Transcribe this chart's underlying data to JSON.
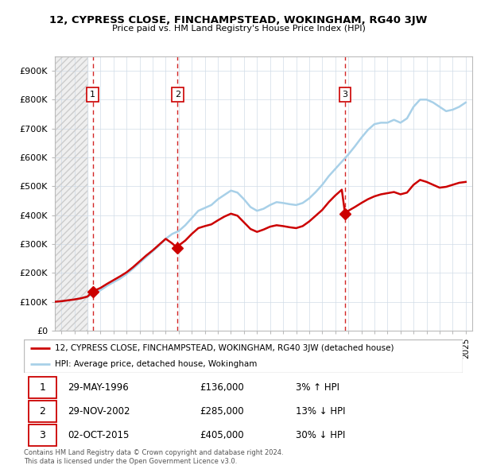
{
  "title": "12, CYPRESS CLOSE, FINCHAMPSTEAD, WOKINGHAM, RG40 3JW",
  "subtitle": "Price paid vs. HM Land Registry's House Price Index (HPI)",
  "ylabel_ticks": [
    "£0",
    "£100K",
    "£200K",
    "£300K",
    "£400K",
    "£500K",
    "£600K",
    "£700K",
    "£800K",
    "£900K"
  ],
  "ytick_values": [
    0,
    100000,
    200000,
    300000,
    400000,
    500000,
    600000,
    700000,
    800000,
    900000
  ],
  "xmin": 1993.5,
  "xmax": 2025.5,
  "ymin": 0,
  "ymax": 950000,
  "sales": [
    {
      "date_num": 1996.41,
      "price": 136000,
      "label": "1"
    },
    {
      "date_num": 2002.91,
      "price": 285000,
      "label": "2"
    },
    {
      "date_num": 2015.75,
      "price": 405000,
      "label": "3"
    }
  ],
  "hpi_color": "#a8d0e8",
  "price_color": "#cc0000",
  "vline_color": "#cc0000",
  "legend_entries": [
    "12, CYPRESS CLOSE, FINCHAMPSTEAD, WOKINGHAM, RG40 3JW (detached house)",
    "HPI: Average price, detached house, Wokingham"
  ],
  "table_rows": [
    {
      "label": "1",
      "date": "29-MAY-1996",
      "price": "£136,000",
      "hpi": "3% ↑ HPI"
    },
    {
      "label": "2",
      "date": "29-NOV-2002",
      "price": "£285,000",
      "hpi": "13% ↓ HPI"
    },
    {
      "label": "3",
      "date": "02-OCT-2015",
      "price": "£405,000",
      "hpi": "30% ↓ HPI"
    }
  ],
  "footnote": "Contains HM Land Registry data © Crown copyright and database right 2024.\nThis data is licensed under the Open Government Licence v3.0.",
  "hpi_x": [
    1993.5,
    1994,
    1994.5,
    1995,
    1995.5,
    1996,
    1996.5,
    1997,
    1997.5,
    1998,
    1998.5,
    1999,
    1999.5,
    2000,
    2000.5,
    2001,
    2001.5,
    2002,
    2002.5,
    2003,
    2003.5,
    2004,
    2004.5,
    2005,
    2005.5,
    2006,
    2006.5,
    2007,
    2007.5,
    2008,
    2008.5,
    2009,
    2009.5,
    2010,
    2010.5,
    2011,
    2011.5,
    2012,
    2012.5,
    2013,
    2013.5,
    2014,
    2014.5,
    2015,
    2015.5,
    2016,
    2016.5,
    2017,
    2017.5,
    2018,
    2018.5,
    2019,
    2019.5,
    2020,
    2020.5,
    2021,
    2021.5,
    2022,
    2022.5,
    2023,
    2023.5,
    2024,
    2024.5,
    2025
  ],
  "hpi_y": [
    100000,
    102000,
    105000,
    108000,
    112000,
    118000,
    128000,
    140000,
    155000,
    168000,
    180000,
    196000,
    215000,
    235000,
    255000,
    275000,
    295000,
    318000,
    335000,
    345000,
    365000,
    390000,
    415000,
    425000,
    435000,
    455000,
    470000,
    485000,
    478000,
    455000,
    428000,
    415000,
    422000,
    435000,
    445000,
    442000,
    438000,
    435000,
    442000,
    458000,
    480000,
    505000,
    535000,
    560000,
    585000,
    610000,
    638000,
    668000,
    695000,
    715000,
    720000,
    720000,
    730000,
    720000,
    735000,
    775000,
    800000,
    800000,
    790000,
    775000,
    760000,
    765000,
    775000,
    790000
  ],
  "price_x": [
    1993.5,
    1994,
    1994.5,
    1995,
    1995.5,
    1996,
    1996.41,
    1997,
    1997.5,
    1998,
    1998.5,
    1999,
    1999.5,
    2000,
    2000.5,
    2001,
    2001.5,
    2002,
    2002.5,
    2002.91,
    2003,
    2003.5,
    2004,
    2004.5,
    2005,
    2005.5,
    2006,
    2006.5,
    2007,
    2007.5,
    2008,
    2008.5,
    2009,
    2009.5,
    2010,
    2010.5,
    2011,
    2011.5,
    2012,
    2012.5,
    2013,
    2013.5,
    2014,
    2014.5,
    2015,
    2015.5,
    2015.75,
    2016,
    2016.5,
    2017,
    2017.5,
    2018,
    2018.5,
    2019,
    2019.5,
    2020,
    2020.5,
    2021,
    2021.5,
    2022,
    2022.5,
    2023,
    2023.5,
    2024,
    2024.5,
    2025
  ],
  "price_y": [
    100000,
    102000,
    105000,
    108000,
    112000,
    118000,
    136000,
    148000,
    162000,
    175000,
    188000,
    202000,
    220000,
    240000,
    260000,
    278000,
    298000,
    318000,
    302000,
    285000,
    295000,
    312000,
    335000,
    355000,
    362000,
    368000,
    382000,
    395000,
    405000,
    398000,
    375000,
    352000,
    342000,
    350000,
    360000,
    365000,
    362000,
    358000,
    355000,
    362000,
    378000,
    398000,
    418000,
    445000,
    468000,
    488000,
    405000,
    415000,
    428000,
    442000,
    455000,
    465000,
    472000,
    476000,
    480000,
    472000,
    478000,
    505000,
    522000,
    515000,
    505000,
    495000,
    498000,
    505000,
    512000,
    515000
  ]
}
